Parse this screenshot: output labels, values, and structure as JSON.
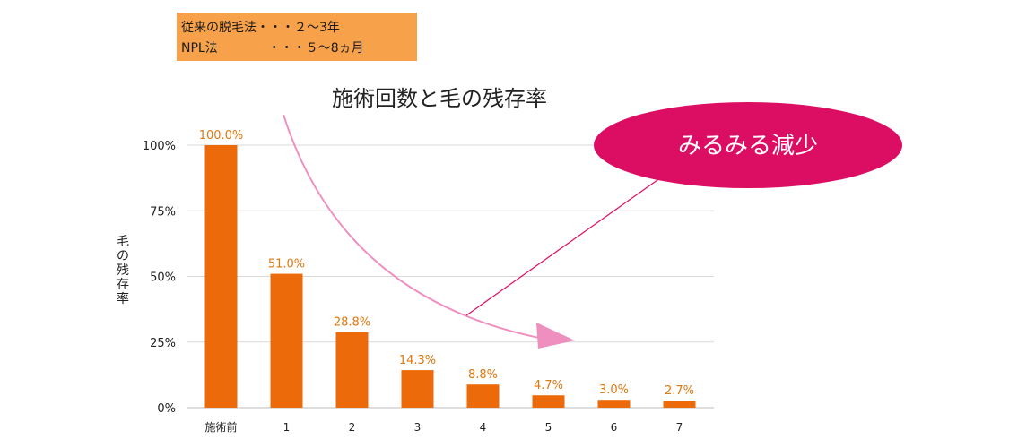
{
  "info_box": {
    "line1": "従来の脱毛法・・・２～3年",
    "line2": "NPL法　　　　・・・５～8ヵ月"
  },
  "callout": {
    "text": "みるみる減少",
    "fill_color": "#dc0e63",
    "arrow_color": "#ee8fc0"
  },
  "colors": {
    "bar": "#ec6a0a",
    "value_label": "#e0780f",
    "grid": "#d9d9d9",
    "info_box": "#f7a24b"
  },
  "chart_data": {
    "type": "bar",
    "title": "施術回数と毛の残存率",
    "ylabel": "毛の残存率",
    "xlabel": "",
    "categories": [
      "施術前",
      "1",
      "2",
      "3",
      "4",
      "5",
      "6",
      "7"
    ],
    "values": [
      100.0,
      51.0,
      28.8,
      14.3,
      8.8,
      4.7,
      3.0,
      2.7
    ],
    "value_labels": [
      "100.0%",
      "51.0%",
      "28.8%",
      "14.3%",
      "8.8%",
      "4.7%",
      "3.0%",
      "2.7%"
    ],
    "ylim": [
      0,
      100
    ],
    "yticks": [
      0,
      25,
      50,
      75,
      100
    ],
    "ytick_labels": [
      "0%",
      "25%",
      "50%",
      "75%",
      "100%"
    ],
    "grid": true,
    "legend": "none"
  }
}
